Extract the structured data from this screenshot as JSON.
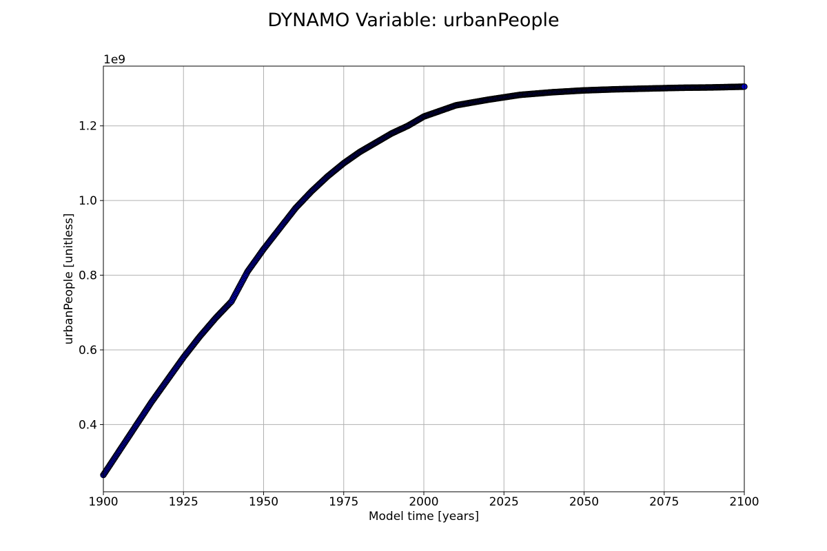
{
  "chart_data": {
    "type": "scatter",
    "title": "DYNAMO Variable: urbanPeople",
    "xlabel": "Model time [years]",
    "ylabel": "urbanPeople [unitless]",
    "y_offset_label": "1e9",
    "xlim": [
      1900,
      2100
    ],
    "ylim": [
      0.22,
      1.36
    ],
    "x_ticks": [
      1900,
      1925,
      1950,
      1975,
      2000,
      2025,
      2050,
      2075,
      2100
    ],
    "x_tick_labels": [
      "1900",
      "1925",
      "1950",
      "1975",
      "2000",
      "2025",
      "2050",
      "2075",
      "2100"
    ],
    "y_ticks": [
      0.4,
      0.6,
      0.8,
      1.0,
      1.2
    ],
    "y_tick_labels": [
      "0.4",
      "0.6",
      "0.8",
      "1.0",
      "1.2"
    ],
    "grid": true,
    "marker_fill_color": "#0000cc",
    "marker_edge_color": "#000000",
    "series": [
      {
        "x": [
          1900,
          1905,
          1910,
          1915,
          1920,
          1925,
          1930,
          1935,
          1940,
          1945,
          1950,
          1955,
          1960,
          1965,
          1970,
          1975,
          1980,
          1985,
          1990,
          1995,
          2000,
          2010,
          2020,
          2030,
          2040,
          2050,
          2060,
          2070,
          2080,
          2090,
          2100
        ],
        "y": [
          0.265,
          0.33,
          0.395,
          0.46,
          0.52,
          0.58,
          0.635,
          0.685,
          0.73,
          0.81,
          0.87,
          0.925,
          0.98,
          1.025,
          1.065,
          1.1,
          1.13,
          1.155,
          1.18,
          1.2,
          1.225,
          1.255,
          1.27,
          1.283,
          1.29,
          1.295,
          1.298,
          1.3,
          1.302,
          1.303,
          1.305
        ]
      }
    ]
  }
}
